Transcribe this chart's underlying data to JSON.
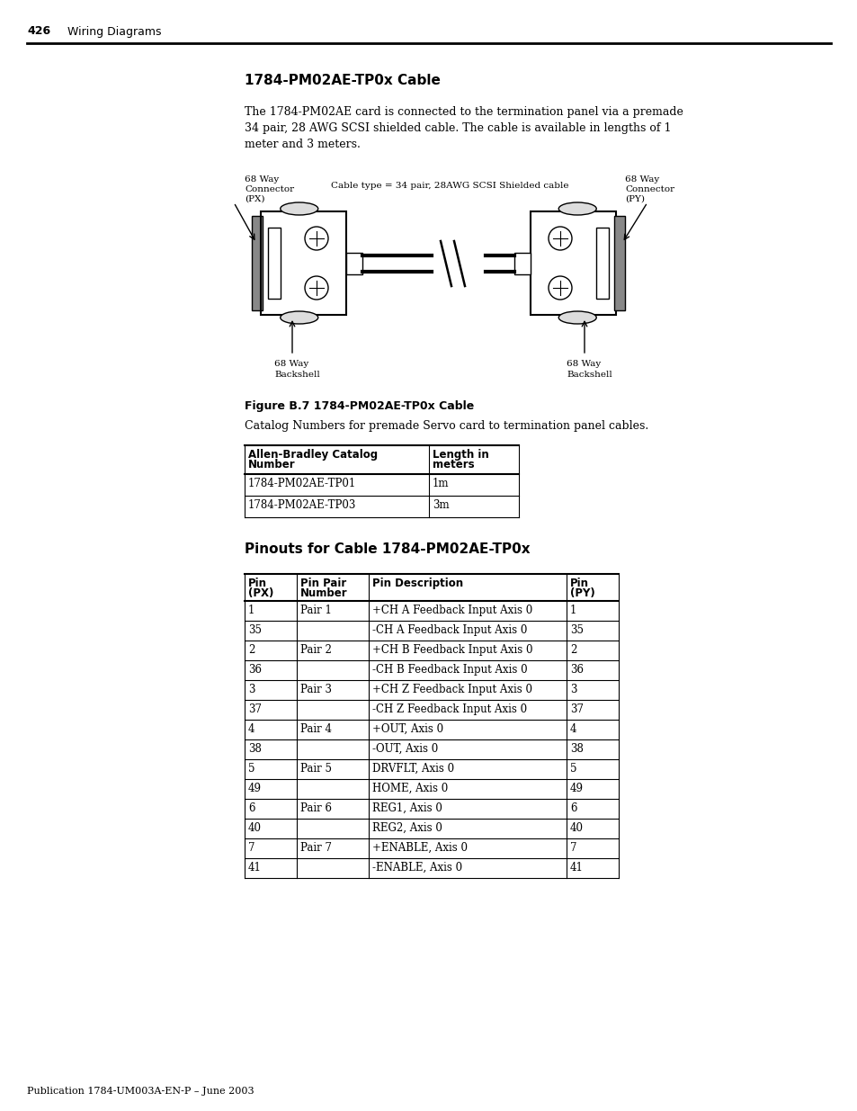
{
  "page_number": "426",
  "page_header": "Wiring Diagrams",
  "section_title": "1784-PM02AE-TP0x Cable",
  "body_text_line1": "The 1784-PM02AE card is connected to the termination panel via a premade",
  "body_text_line2": "34 pair, 28 AWG SCSI shielded cable. The cable is available in lengths of 1",
  "body_text_line3": "meter and 3 meters.",
  "figure_label": "Figure B.7 1784-PM02AE-TP0x Cable",
  "catalog_intro": "Catalog Numbers for premade Servo card to termination panel cables.",
  "catalog_headers_col1": "Allen-Bradley Catalog\nNumber",
  "catalog_headers_col2": "Length in\nmeters",
  "catalog_rows": [
    [
      "1784-PM02AE-TP01",
      "1m"
    ],
    [
      "1784-PM02AE-TP03",
      "3m"
    ]
  ],
  "pinouts_title": "Pinouts for Cable 1784-PM02AE-TP0x",
  "pinouts_header_col1": "Pin\n(PX)",
  "pinouts_header_col2": "Pin Pair\nNumber",
  "pinouts_header_col3": "Pin Description",
  "pinouts_header_col4": "Pin\n(PY)",
  "pinouts_rows": [
    [
      "1",
      "Pair 1",
      "+CH A Feedback Input Axis 0",
      "1"
    ],
    [
      "35",
      "",
      "-CH A Feedback Input Axis 0",
      "35"
    ],
    [
      "2",
      "Pair 2",
      "+CH B Feedback Input Axis 0",
      "2"
    ],
    [
      "36",
      "",
      "-CH B Feedback Input Axis 0",
      "36"
    ],
    [
      "3",
      "Pair 3",
      "+CH Z Feedback Input Axis 0",
      "3"
    ],
    [
      "37",
      "",
      "-CH Z Feedback Input Axis 0",
      "37"
    ],
    [
      "4",
      "Pair 4",
      "+OUT, Axis 0",
      "4"
    ],
    [
      "38",
      "",
      "-OUT, Axis 0",
      "38"
    ],
    [
      "5",
      "Pair 5",
      "DRVFLT, Axis 0",
      "5"
    ],
    [
      "49",
      "",
      "HOME, Axis 0",
      "49"
    ],
    [
      "6",
      "Pair 6",
      "REG1, Axis 0",
      "6"
    ],
    [
      "40",
      "",
      "REG2, Axis 0",
      "40"
    ],
    [
      "7",
      "Pair 7",
      "+ENABLE, Axis 0",
      "7"
    ],
    [
      "41",
      "",
      "-ENABLE, Axis 0",
      "41"
    ]
  ],
  "label_left_top_line1": "68 Way",
  "label_left_top_line2": "Connector",
  "label_left_top_line3": "(PX)",
  "label_right_top_line1": "68 Way",
  "label_right_top_line2": "Connector",
  "label_right_top_line3": "(PY)",
  "label_left_bot_line1": "68 Way",
  "label_left_bot_line2": "Backshell",
  "label_right_bot_line1": "68 Way",
  "label_right_bot_line2": "Backshell",
  "cable_type_label": "Cable type = 34 pair, 28AWG SCSI Shielded cable",
  "footer_text": "Publication 1784-UM003A-EN-P – June 2003",
  "bg_color": "#ffffff"
}
